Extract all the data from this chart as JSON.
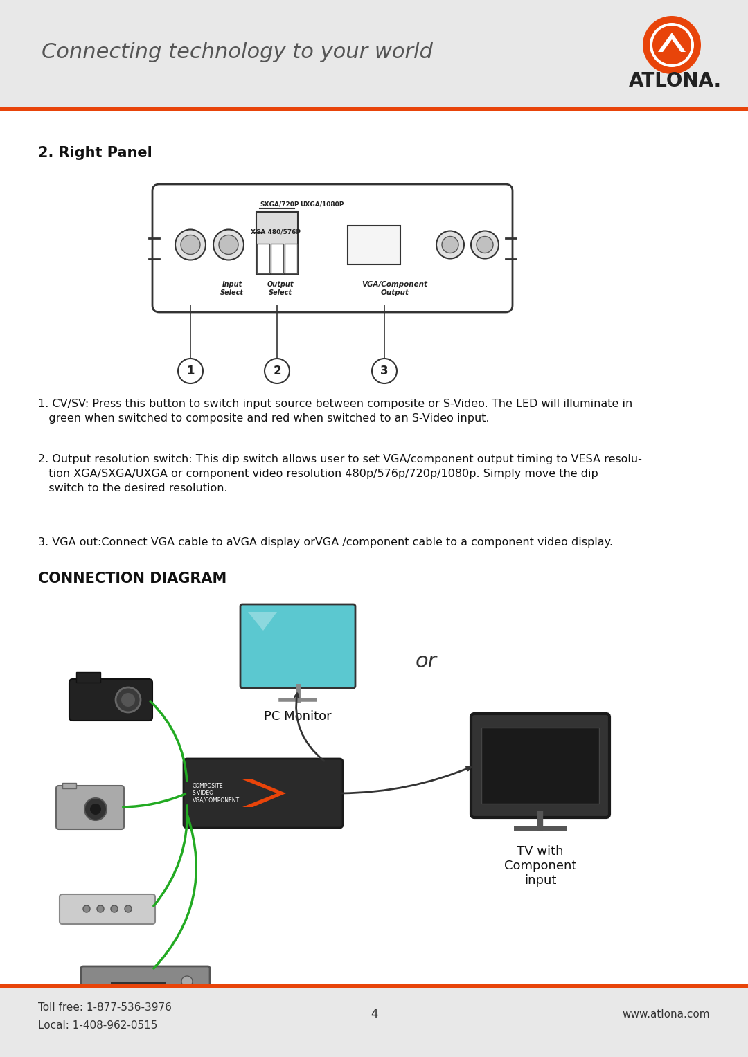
{
  "bg_color": "#f0f0f0",
  "white_bg": "#ffffff",
  "orange_color": "#e8440a",
  "header_bg": "#e8e8e8",
  "header_text": "Connecting technology to your world",
  "brand_name": "ATLONA.",
  "section_title": "2. Right Panel",
  "connection_title": "CONNECTION DIAGRAM",
  "footer_left_line1": "Toll free: 1-877-536-3976",
  "footer_left_line2": "Local: 1-408-962-0515",
  "footer_center": "4",
  "footer_right": "www.atlona.com",
  "desc1": "1. CV/SV: Press this button to switch input source between composite or S-Video. The LED will illuminate in\n   green when switched to composite and red when switched to an S-Video input.",
  "desc2": "2. Output resolution switch: This dip switch allows user to set VGA/component output timing to VESA resolu-\n   tion XGA/SXGA/UXGA or component video resolution 480p/576p/720p/1080p. Simply move the dip\n   switch to the desired resolution.",
  "desc3": "3. VGA out:Connect VGA cable to aVGA display orVGA /component cable to a component video display.",
  "panel_labels": {
    "sxga": "SXGA/720P",
    "uxga": "UXGA/1080P",
    "xga": "XGA 480/576P",
    "input_select": "Input\nSelect",
    "output_select": "Output\nSelect",
    "vga_component": "VGA/Component\nOutput"
  },
  "numbered_labels": [
    "1",
    "2",
    "3"
  ],
  "connection_labels": {
    "pc_monitor": "PC Monitor",
    "or_text": "or",
    "tv_label": "TV with\nComponent\ninput"
  }
}
